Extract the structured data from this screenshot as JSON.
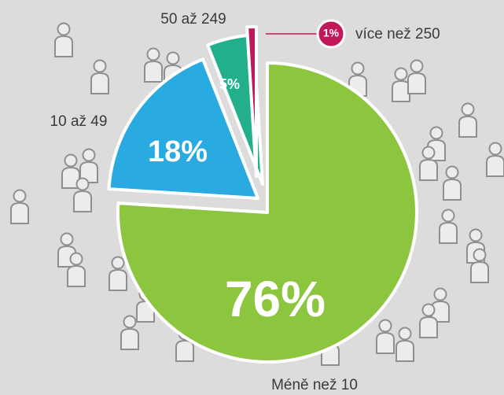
{
  "chart_data": {
    "type": "pie",
    "categories": [
      "Méně než 10",
      "10 až 49",
      "50 až 249",
      "více než 250"
    ],
    "values": [
      76,
      18,
      5,
      1
    ],
    "value_labels": [
      "76%",
      "18%",
      "5%",
      "1%"
    ],
    "colors": [
      "#8cc63f",
      "#29abe2",
      "#22b08c",
      "#c2185b"
    ]
  }
}
